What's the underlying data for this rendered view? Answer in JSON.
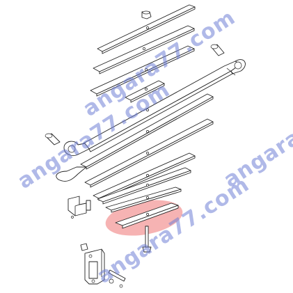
{
  "diagram": {
    "watermark_text": "angara77.com",
    "highlight_color": "#f4a6a6",
    "watermark_color": "#6f7fd6",
    "highlighted_part": "lowest-spring-leaf"
  }
}
